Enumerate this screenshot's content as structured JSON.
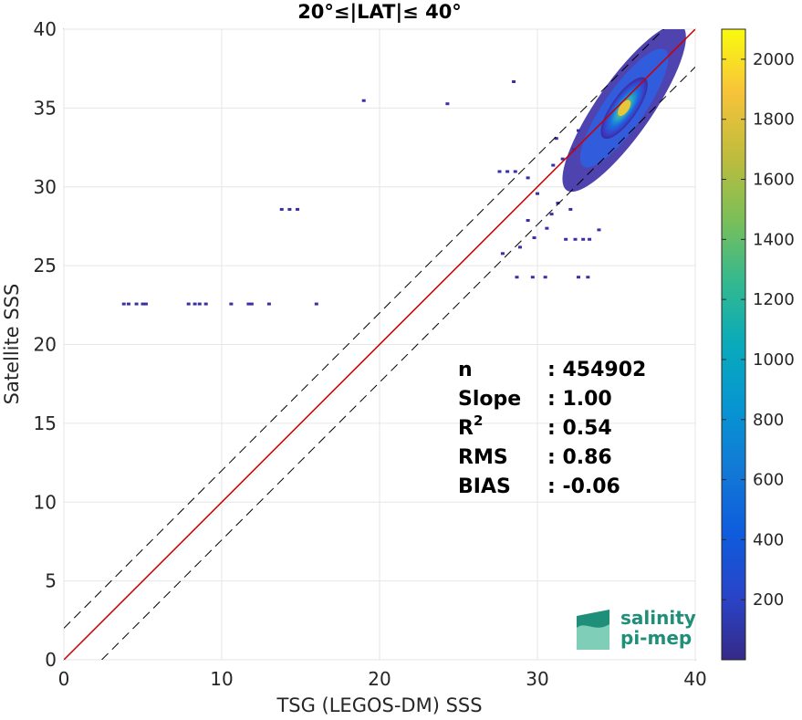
{
  "chart_data": {
    "type": "heatmap",
    "title": "20°≤|LAT|≤ 40°",
    "xlabel": "TSG (LEGOS-DM) SSS",
    "ylabel": "Satellite SSS",
    "xlim": [
      0,
      40
    ],
    "ylim": [
      0,
      40
    ],
    "xticks": [
      "0",
      "10",
      "20",
      "30",
      "40"
    ],
    "yticks": [
      "0",
      "5",
      "10",
      "15",
      "20",
      "25",
      "30",
      "35",
      "40"
    ],
    "grid": true,
    "colorbar": {
      "range": [
        0,
        2100
      ],
      "ticks": [
        "200",
        "400",
        "600",
        "800",
        "1000",
        "1200",
        "1400",
        "1600",
        "1800",
        "2000"
      ],
      "colormap": "parula"
    },
    "lines": [
      {
        "role": "identity",
        "color": "#000000",
        "style": "solid",
        "points": [
          [
            0,
            0
          ],
          [
            40,
            40
          ]
        ]
      },
      {
        "role": "regression",
        "color": "#cc0000",
        "style": "solid",
        "points": [
          [
            0,
            0
          ],
          [
            40,
            40
          ]
        ]
      },
      {
        "role": "upper-bound",
        "color": "#000000",
        "style": "dashed",
        "points": [
          [
            0,
            2
          ],
          [
            40,
            42
          ]
        ]
      },
      {
        "role": "lower-bound",
        "color": "#000000",
        "style": "dashed",
        "points": [
          [
            2.4,
            0
          ],
          [
            40,
            37.6
          ]
        ]
      }
    ],
    "density_core": {
      "x_center": 35.5,
      "y_center": 35.0,
      "peak_count": 2050
    },
    "stats": [
      {
        "label": "n",
        "value": ": 454902"
      },
      {
        "label": "Slope",
        "value": ": 1.00"
      },
      {
        "label": "R",
        "sup": "2",
        "value": ": 0.54"
      },
      {
        "label": "RMS",
        "value": ": 0.86"
      },
      {
        "label": "BIAS",
        "value": ": -0.06"
      }
    ],
    "outlier_points": [
      [
        3.8,
        22.6
      ],
      [
        4.1,
        22.6
      ],
      [
        4.6,
        22.6
      ],
      [
        5.0,
        22.6
      ],
      [
        5.2,
        22.6
      ],
      [
        7.9,
        22.6
      ],
      [
        8.3,
        22.6
      ],
      [
        8.6,
        22.6
      ],
      [
        9.0,
        22.6
      ],
      [
        10.6,
        22.6
      ],
      [
        11.7,
        22.6
      ],
      [
        11.9,
        22.6
      ],
      [
        13.0,
        22.6
      ],
      [
        16.0,
        22.6
      ],
      [
        13.8,
        28.6
      ],
      [
        14.3,
        28.6
      ],
      [
        14.8,
        28.6
      ],
      [
        19.0,
        35.5
      ],
      [
        24.3,
        35.3
      ],
      [
        28.5,
        36.7
      ],
      [
        32.4,
        26.7
      ],
      [
        32.9,
        26.7
      ],
      [
        33.3,
        26.7
      ],
      [
        31.8,
        26.7
      ],
      [
        33.9,
        27.3
      ],
      [
        28.7,
        24.3
      ],
      [
        29.7,
        24.3
      ],
      [
        30.5,
        24.3
      ],
      [
        32.6,
        24.3
      ],
      [
        33.2,
        24.3
      ],
      [
        27.8,
        25.8
      ],
      [
        28.9,
        26.2
      ],
      [
        29.8,
        26.8
      ],
      [
        30.6,
        27.4
      ],
      [
        29.4,
        27.9
      ],
      [
        30.9,
        28.3
      ],
      [
        27.6,
        31.0
      ],
      [
        28.1,
        31.0
      ],
      [
        28.6,
        31.0
      ],
      [
        29.4,
        30.6
      ],
      [
        30.0,
        29.6
      ],
      [
        31.3,
        29.0
      ],
      [
        32.1,
        28.6
      ],
      [
        31.0,
        31.4
      ],
      [
        31.6,
        31.8
      ],
      [
        32.3,
        32.4
      ],
      [
        31.2,
        33.1
      ],
      [
        32.6,
        33.6
      ]
    ],
    "logo_text": [
      "salinity",
      "pi-mep"
    ]
  }
}
